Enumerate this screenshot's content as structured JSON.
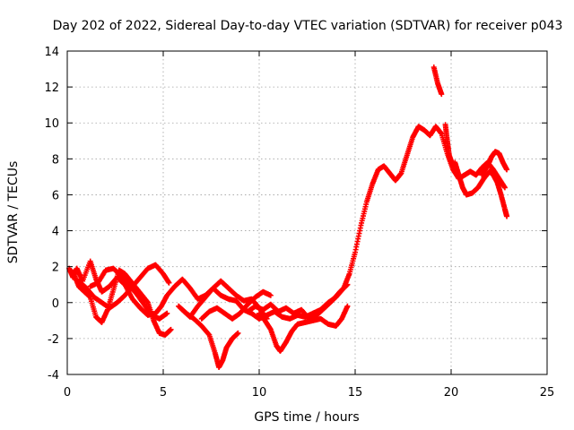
{
  "chart_data": {
    "type": "scatter",
    "title": "Day 202 of 2022, Sidereal Day-to-day VTEC variation (SDTVAR) for receiver p043",
    "xlabel": "GPS time / hours",
    "ylabel": "SDTVAR / TECUs",
    "xlim": [
      0,
      25
    ],
    "ylim": [
      -4,
      14
    ],
    "xticks": [
      0,
      5,
      10,
      15,
      20,
      25
    ],
    "yticks": [
      -4,
      -2,
      0,
      2,
      4,
      6,
      8,
      10,
      12,
      14
    ],
    "grid": true,
    "marker": "+",
    "series": [
      {
        "name": "SDTVAR",
        "color": "#ff0000",
        "tracks": [
          [
            [
              0.1,
              1.9
            ],
            [
              0.3,
              1.4
            ],
            [
              0.5,
              1.9
            ],
            [
              0.8,
              1.2
            ],
            [
              1.2,
              2.3
            ],
            [
              1.5,
              1.3
            ],
            [
              1.8,
              0.6
            ],
            [
              2.2,
              0.9
            ],
            [
              2.6,
              1.4
            ],
            [
              3.0,
              1.0
            ],
            [
              3.4,
              0.2
            ],
            [
              3.8,
              -0.3
            ],
            [
              4.2,
              -0.7
            ],
            [
              4.6,
              -0.6
            ],
            [
              4.9,
              -0.2
            ],
            [
              5.2,
              0.4
            ],
            [
              5.6,
              0.9
            ],
            [
              6.0,
              1.3
            ],
            [
              6.4,
              0.8
            ],
            [
              6.8,
              0.2
            ],
            [
              7.2,
              0.4
            ],
            [
              7.6,
              0.8
            ],
            [
              8.0,
              0.4
            ],
            [
              8.4,
              0.2
            ],
            [
              8.8,
              0.1
            ],
            [
              9.2,
              -0.4
            ],
            [
              9.6,
              -0.6
            ],
            [
              10.0,
              -0.9
            ],
            [
              10.4,
              -0.7
            ],
            [
              10.8,
              -0.5
            ],
            [
              11.2,
              -0.8
            ],
            [
              11.6,
              -0.9
            ],
            [
              12.0,
              -0.7
            ],
            [
              12.4,
              -0.8
            ],
            [
              12.8,
              -0.6
            ],
            [
              13.2,
              -0.4
            ],
            [
              13.6,
              0.0
            ],
            [
              14.0,
              0.3
            ],
            [
              14.4,
              0.8
            ],
            [
              14.7,
              1.6
            ],
            [
              15.0,
              2.8
            ],
            [
              15.3,
              4.3
            ],
            [
              15.6,
              5.6
            ],
            [
              15.9,
              6.6
            ],
            [
              16.2,
              7.4
            ],
            [
              16.5,
              7.6
            ],
            [
              16.8,
              7.2
            ],
            [
              17.1,
              6.8
            ],
            [
              17.4,
              7.2
            ],
            [
              17.7,
              8.2
            ],
            [
              18.0,
              9.2
            ],
            [
              18.3,
              9.8
            ],
            [
              18.6,
              9.6
            ],
            [
              18.9,
              9.3
            ],
            [
              19.2,
              9.8
            ],
            [
              19.5,
              9.4
            ],
            [
              19.8,
              8.3
            ],
            [
              20.1,
              7.4
            ],
            [
              20.4,
              6.9
            ],
            [
              20.7,
              7.1
            ],
            [
              21.0,
              7.3
            ],
            [
              21.3,
              7.1
            ],
            [
              21.6,
              7.5
            ],
            [
              21.9,
              7.8
            ],
            [
              22.2,
              7.4
            ],
            [
              22.5,
              6.9
            ],
            [
              22.8,
              6.4
            ]
          ],
          [
            [
              0.3,
              1.7
            ],
            [
              0.6,
              0.9
            ],
            [
              0.9,
              0.6
            ],
            [
              1.2,
              0.3
            ],
            [
              1.5,
              -0.8
            ],
            [
              1.8,
              -1.1
            ],
            [
              2.1,
              -0.4
            ],
            [
              2.4,
              0.7
            ],
            [
              2.7,
              1.8
            ],
            [
              3.0,
              1.6
            ],
            [
              3.3,
              1.2
            ],
            [
              3.6,
              0.8
            ],
            [
              3.9,
              0.4
            ],
            [
              4.2,
              0.0
            ],
            [
              4.5,
              -1.0
            ],
            [
              4.8,
              -1.7
            ],
            [
              5.1,
              -1.8
            ],
            [
              5.4,
              -1.5
            ]
          ],
          [
            [
              0.6,
              1.2
            ],
            [
              1.0,
              0.8
            ],
            [
              1.4,
              0.3
            ],
            [
              1.8,
              0.0
            ],
            [
              2.2,
              -0.3
            ],
            [
              2.6,
              0.0
            ],
            [
              3.0,
              0.4
            ],
            [
              3.4,
              0.9
            ],
            [
              3.8,
              1.4
            ],
            [
              4.2,
              1.9
            ],
            [
              4.6,
              2.1
            ],
            [
              5.0,
              1.6
            ],
            [
              5.3,
              1.1
            ]
          ],
          [
            [
              1.2,
              0.9
            ],
            [
              1.6,
              1.1
            ],
            [
              2.0,
              1.8
            ],
            [
              2.4,
              1.9
            ],
            [
              2.8,
              1.5
            ],
            [
              3.2,
              1.0
            ],
            [
              3.6,
              0.5
            ],
            [
              4.0,
              -0.1
            ],
            [
              4.4,
              -0.7
            ],
            [
              4.8,
              -0.9
            ],
            [
              5.2,
              -0.6
            ]
          ],
          [
            [
              5.8,
              -0.2
            ],
            [
              6.2,
              -0.6
            ],
            [
              6.6,
              -0.9
            ],
            [
              7.0,
              -1.3
            ],
            [
              7.4,
              -1.8
            ],
            [
              7.7,
              -2.8
            ],
            [
              7.9,
              -3.6
            ],
            [
              8.1,
              -3.2
            ],
            [
              8.3,
              -2.5
            ],
            [
              8.6,
              -2.0
            ],
            [
              8.9,
              -1.7
            ]
          ],
          [
            [
              6.0,
              -0.4
            ],
            [
              6.4,
              -0.8
            ],
            [
              6.8,
              -0.2
            ],
            [
              7.2,
              0.3
            ],
            [
              7.6,
              0.8
            ],
            [
              8.0,
              1.2
            ],
            [
              8.4,
              0.8
            ],
            [
              8.8,
              0.4
            ],
            [
              9.2,
              0.1
            ],
            [
              9.6,
              0.2
            ],
            [
              10.0,
              -0.3
            ],
            [
              10.4,
              -0.9
            ]
          ],
          [
            [
              7.0,
              -0.9
            ],
            [
              7.4,
              -0.5
            ],
            [
              7.8,
              -0.3
            ],
            [
              8.2,
              -0.6
            ],
            [
              8.6,
              -0.9
            ],
            [
              9.0,
              -0.6
            ],
            [
              9.4,
              -0.1
            ],
            [
              9.8,
              0.3
            ],
            [
              10.2,
              0.6
            ],
            [
              10.6,
              0.4
            ]
          ],
          [
            [
              10.0,
              -0.6
            ],
            [
              10.3,
              -1.0
            ],
            [
              10.6,
              -1.5
            ],
            [
              10.9,
              -2.4
            ],
            [
              11.1,
              -2.7
            ],
            [
              11.4,
              -2.2
            ],
            [
              11.7,
              -1.6
            ],
            [
              12.0,
              -1.2
            ],
            [
              12.4,
              -1.1
            ],
            [
              12.8,
              -1.0
            ],
            [
              13.2,
              -0.9
            ],
            [
              13.6,
              -1.2
            ],
            [
              14.0,
              -1.3
            ],
            [
              14.3,
              -0.9
            ],
            [
              14.6,
              -0.2
            ]
          ],
          [
            [
              9.4,
              -0.5
            ],
            [
              9.8,
              -0.2
            ],
            [
              10.2,
              -0.4
            ],
            [
              10.6,
              -0.1
            ],
            [
              11.0,
              -0.5
            ],
            [
              11.4,
              -0.3
            ],
            [
              11.8,
              -0.6
            ],
            [
              12.2,
              -0.4
            ],
            [
              12.6,
              -0.9
            ],
            [
              13.0,
              -0.7
            ],
            [
              13.4,
              -0.3
            ],
            [
              13.8,
              0.1
            ],
            [
              14.2,
              0.6
            ],
            [
              14.6,
              1.0
            ]
          ],
          [
            [
              19.1,
              13.1
            ],
            [
              19.3,
              12.2
            ],
            [
              19.5,
              11.6
            ]
          ],
          [
            [
              19.7,
              9.9
            ],
            [
              19.8,
              9.0
            ],
            [
              19.9,
              8.2
            ],
            [
              20.1,
              7.6
            ]
          ],
          [
            [
              20.2,
              7.8
            ],
            [
              20.4,
              7.1
            ],
            [
              20.6,
              6.4
            ],
            [
              20.8,
              6.0
            ],
            [
              21.1,
              6.1
            ],
            [
              21.4,
              6.4
            ],
            [
              21.7,
              6.9
            ],
            [
              22.0,
              7.3
            ],
            [
              22.2,
              7.1
            ],
            [
              22.4,
              6.7
            ],
            [
              22.6,
              6.0
            ],
            [
              22.8,
              5.2
            ],
            [
              22.9,
              4.8
            ]
          ],
          [
            [
              21.6,
              7.1
            ],
            [
              21.9,
              7.6
            ],
            [
              22.1,
              8.1
            ],
            [
              22.3,
              8.4
            ],
            [
              22.5,
              8.3
            ],
            [
              22.7,
              7.8
            ],
            [
              22.9,
              7.4
            ]
          ]
        ]
      }
    ]
  }
}
